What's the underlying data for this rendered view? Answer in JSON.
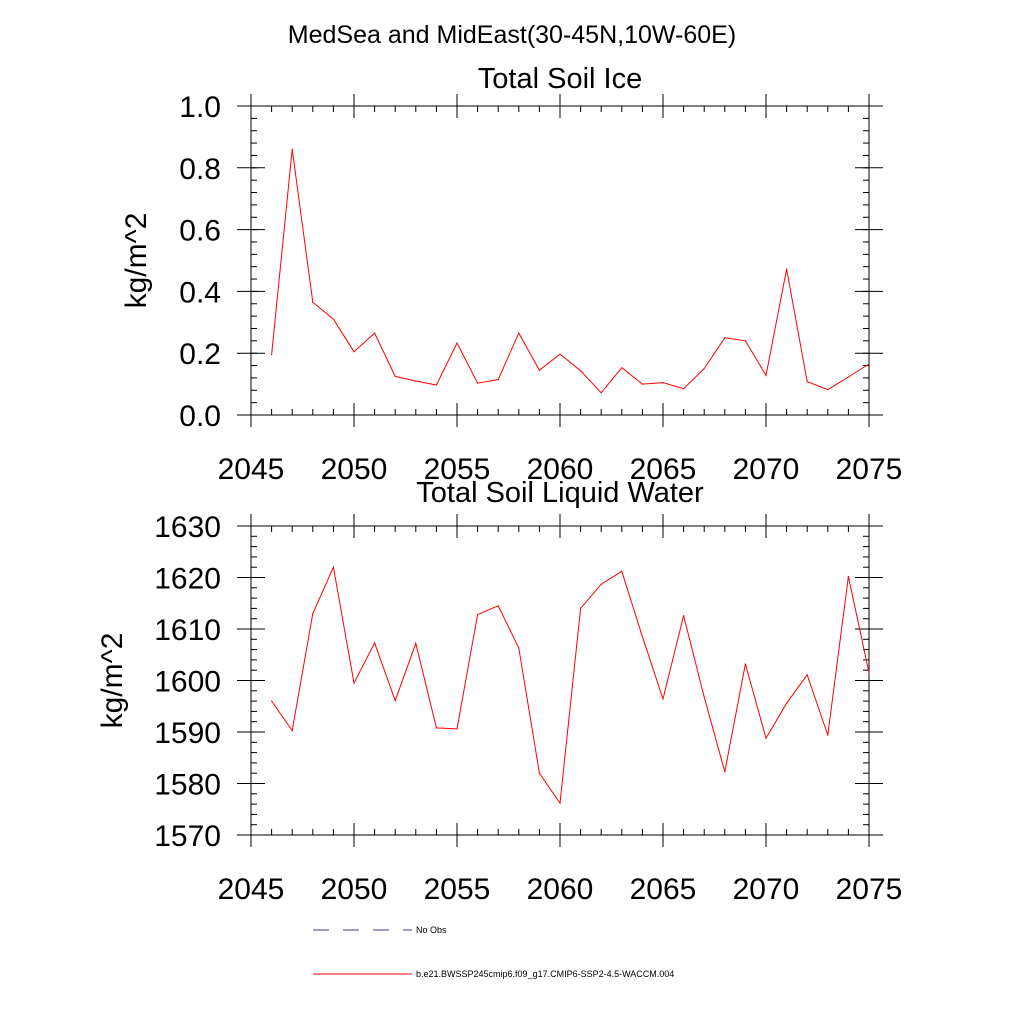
{
  "suptitle": "MedSea and MidEast(30-45N,10W-60E)",
  "colors": {
    "model": "#ff0000",
    "obs": "#3c3c8c",
    "axis": "#000000"
  },
  "legend": {
    "entries": [
      {
        "label": "No Obs",
        "style": "dashed",
        "color": "#3c3c8c"
      },
      {
        "label": "b.e21.BWSSP245cmip6.f09_g17.CMIP6-SSP2-4.5-WACCM.004",
        "style": "solid",
        "color": "#ff0000"
      }
    ]
  },
  "chart_data": [
    {
      "type": "line",
      "title": "Total Soil Ice",
      "ylabel": "kg/m^2",
      "xlabel": "",
      "xlim": [
        2045,
        2075
      ],
      "ylim": [
        0.0,
        1.0
      ],
      "xticks": [
        2045,
        2050,
        2055,
        2060,
        2065,
        2070,
        2075
      ],
      "yticks": [
        0.0,
        0.2,
        0.4,
        0.6,
        0.8,
        1.0
      ],
      "yticklabels": [
        "0.0",
        "0.2",
        "0.4",
        "0.6",
        "0.8",
        "1.0"
      ],
      "grid": false,
      "series": [
        {
          "name": "b.e21.BWSSP245cmip6.f09_g17.CMIP6-SSP2-4.5-WACCM.004",
          "x": [
            2046,
            2047,
            2048,
            2049,
            2050,
            2051,
            2052,
            2053,
            2054,
            2055,
            2056,
            2057,
            2058,
            2059,
            2060,
            2061,
            2062,
            2063,
            2064,
            2065,
            2066,
            2067,
            2068,
            2069,
            2070,
            2071,
            2072,
            2073,
            2074,
            2075
          ],
          "values": [
            0.195,
            0.86,
            0.365,
            0.31,
            0.205,
            0.265,
            0.125,
            0.11,
            0.097,
            0.233,
            0.103,
            0.115,
            0.265,
            0.145,
            0.197,
            0.143,
            0.072,
            0.153,
            0.1,
            0.105,
            0.085,
            0.15,
            0.25,
            0.24,
            0.128,
            0.472,
            0.108,
            0.082,
            0.123,
            0.165
          ]
        }
      ]
    },
    {
      "type": "line",
      "title": "Total Soil Liquid Water",
      "ylabel": "kg/m^2",
      "xlabel": "",
      "xlim": [
        2045,
        2075
      ],
      "ylim": [
        1570,
        1630
      ],
      "xticks": [
        2045,
        2050,
        2055,
        2060,
        2065,
        2070,
        2075
      ],
      "yticks": [
        1570,
        1580,
        1590,
        1600,
        1610,
        1620,
        1630
      ],
      "yticklabels": [
        "1570",
        "1580",
        "1590",
        "1600",
        "1610",
        "1620",
        "1630"
      ],
      "grid": false,
      "series": [
        {
          "name": "b.e21.BWSSP245cmip6.f09_g17.CMIP6-SSP2-4.5-WACCM.004",
          "x": [
            2046,
            2047,
            2048,
            2049,
            2050,
            2051,
            2052,
            2053,
            2054,
            2055,
            2056,
            2057,
            2058,
            2059,
            2060,
            2061,
            2062,
            2063,
            2064,
            2065,
            2066,
            2067,
            2068,
            2069,
            2070,
            2071,
            2072,
            2073,
            2074,
            2075
          ],
          "values": [
            1596,
            1590.3,
            1613,
            1622,
            1599.5,
            1607.3,
            1596.1,
            1607.2,
            1590.8,
            1590.6,
            1612.8,
            1614.5,
            1606.3,
            1582,
            1576.2,
            1614,
            1618.7,
            1621.2,
            1608.5,
            1596.4,
            1612.6,
            1596.8,
            1582.3,
            1603.2,
            1588.8,
            1595.6,
            1601.1,
            1589.4,
            1620.2,
            1601.5
          ]
        }
      ]
    }
  ]
}
